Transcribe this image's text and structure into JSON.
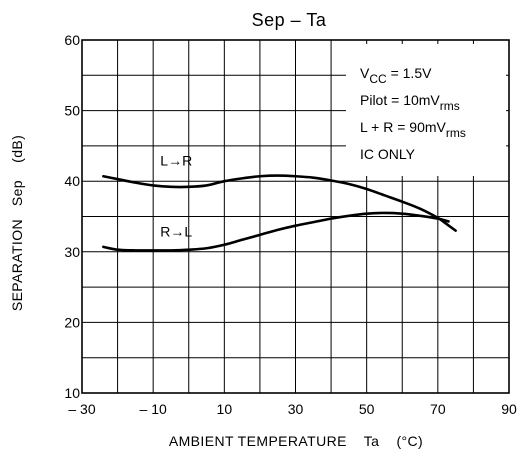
{
  "chart_data": {
    "type": "line",
    "title": "Sep  –  Ta",
    "xlabel": "AMBIENT TEMPERATURE    Ta    (°C)",
    "ylabel": "SEPARATION   Sep    (dB)",
    "xlim": [
      -30,
      90
    ],
    "ylim": [
      10,
      60
    ],
    "grid": true,
    "x_major_ticks": [
      -30,
      -10,
      10,
      30,
      50,
      70,
      90
    ],
    "x_tick_labels": [
      "– 30",
      "– 10",
      "10",
      "30",
      "50",
      "70",
      "90"
    ],
    "x_grid": [
      -30,
      -20,
      -10,
      0,
      10,
      20,
      30,
      40,
      50,
      60,
      70,
      80,
      90
    ],
    "y_major_ticks": [
      10,
      20,
      30,
      40,
      50,
      60
    ],
    "y_tick_labels": [
      "10",
      "20",
      "30",
      "40",
      "50",
      "60"
    ],
    "y_grid": [
      10,
      15,
      20,
      25,
      30,
      35,
      40,
      45,
      50,
      55,
      60
    ],
    "annotations": [
      {
        "name": "vcc",
        "parts": [
          {
            "t": "V",
            "sub": false
          },
          {
            "t": "CC",
            "sub": true
          },
          {
            "t": " = 1.5V",
            "sub": false
          }
        ]
      },
      {
        "name": "pilot",
        "parts": [
          {
            "t": "Pilot = 10mV",
            "sub": false
          },
          {
            "t": "rms",
            "sub": true
          }
        ]
      },
      {
        "name": "lr-level",
        "parts": [
          {
            "t": "L + R = 90mV",
            "sub": false
          },
          {
            "t": "rms",
            "sub": true
          }
        ]
      },
      {
        "name": "ic-only",
        "parts": [
          {
            "t": "IC ONLY",
            "sub": false
          }
        ]
      }
    ],
    "series": [
      {
        "label": "L→R",
        "label_at": {
          "x": -8,
          "y": 42.2
        },
        "x": [
          -24,
          -20,
          -15,
          -10,
          -5,
          0,
          5,
          10,
          15,
          20,
          25,
          30,
          35,
          40,
          45,
          50,
          55,
          60,
          65,
          70,
          72,
          75
        ],
        "y": [
          40.7,
          40.3,
          39.8,
          39.4,
          39.2,
          39.2,
          39.4,
          40.0,
          40.4,
          40.7,
          40.8,
          40.7,
          40.5,
          40.1,
          39.6,
          38.9,
          38.0,
          37.1,
          36.1,
          34.8,
          34.1,
          33.0
        ]
      },
      {
        "label": "R→L",
        "label_at": {
          "x": -8,
          "y": 32.2
        },
        "x": [
          -24,
          -20,
          -15,
          -10,
          -5,
          0,
          5,
          10,
          15,
          20,
          25,
          30,
          35,
          40,
          45,
          50,
          55,
          60,
          65,
          70,
          73
        ],
        "y": [
          30.7,
          30.3,
          30.2,
          30.2,
          30.2,
          30.3,
          30.5,
          31.0,
          31.7,
          32.4,
          33.1,
          33.7,
          34.2,
          34.7,
          35.1,
          35.4,
          35.5,
          35.4,
          35.1,
          34.7,
          34.3
        ]
      }
    ]
  }
}
